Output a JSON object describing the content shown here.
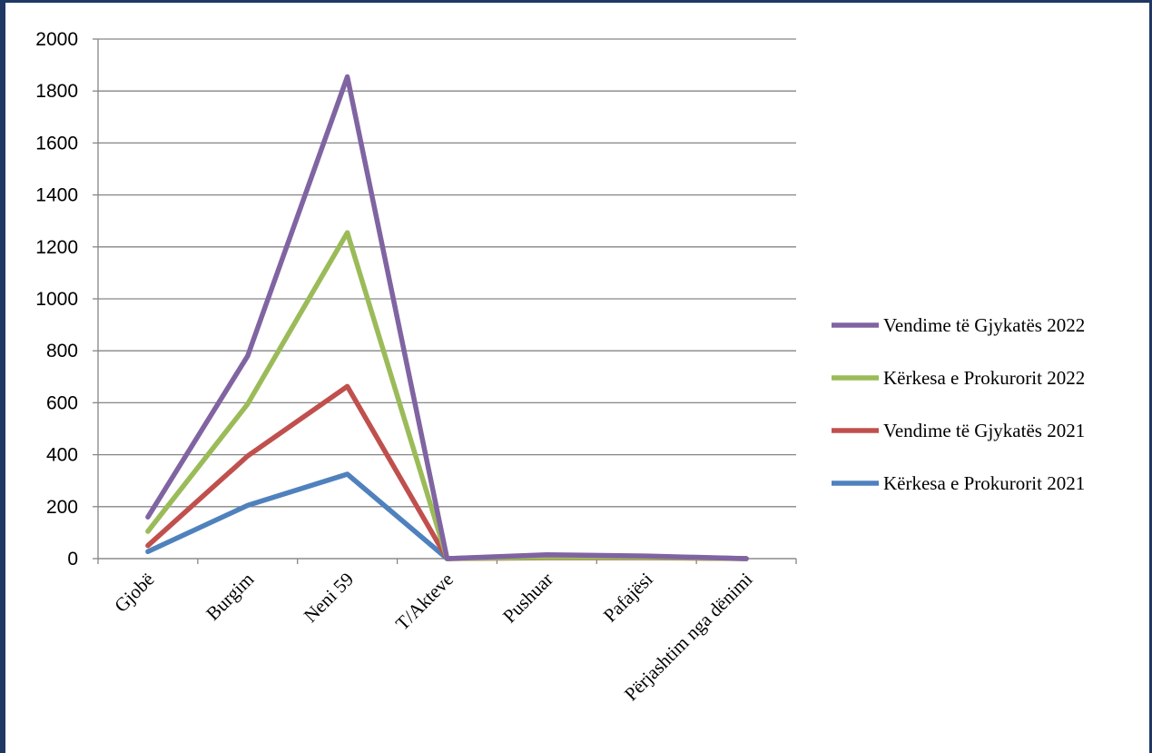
{
  "chart_data": {
    "type": "line",
    "title": "",
    "xlabel": "",
    "ylabel": "",
    "categories": [
      "Gjobë",
      "Burgim",
      "Neni 59",
      "T/Akteve",
      "Pushuar",
      "Pafajësi",
      "Përjashtim nga dënimi"
    ],
    "ylim": [
      0,
      2000
    ],
    "yticks": [
      0,
      200,
      400,
      600,
      800,
      1000,
      1200,
      1400,
      1600,
      1800,
      2000
    ],
    "grid": true,
    "legend_position": "right",
    "series": [
      {
        "name": "Vendime të Gjykatës 2022",
        "color": "#8064a2",
        "values": [
          160,
          780,
          1855,
          0,
          15,
          10,
          0
        ]
      },
      {
        "name": "Kërkesa e Prokurorit 2022",
        "color": "#9bbb59",
        "values": [
          105,
          595,
          1255,
          0,
          5,
          5,
          0
        ]
      },
      {
        "name": "Vendime të Gjykatës 2021",
        "color": "#c0504d",
        "values": [
          50,
          395,
          663,
          0,
          3,
          3,
          0
        ]
      },
      {
        "name": "Kërkesa e Prokurorit 2021",
        "color": "#4f81bd",
        "values": [
          27,
          205,
          325,
          0,
          12,
          8,
          0
        ]
      }
    ]
  }
}
